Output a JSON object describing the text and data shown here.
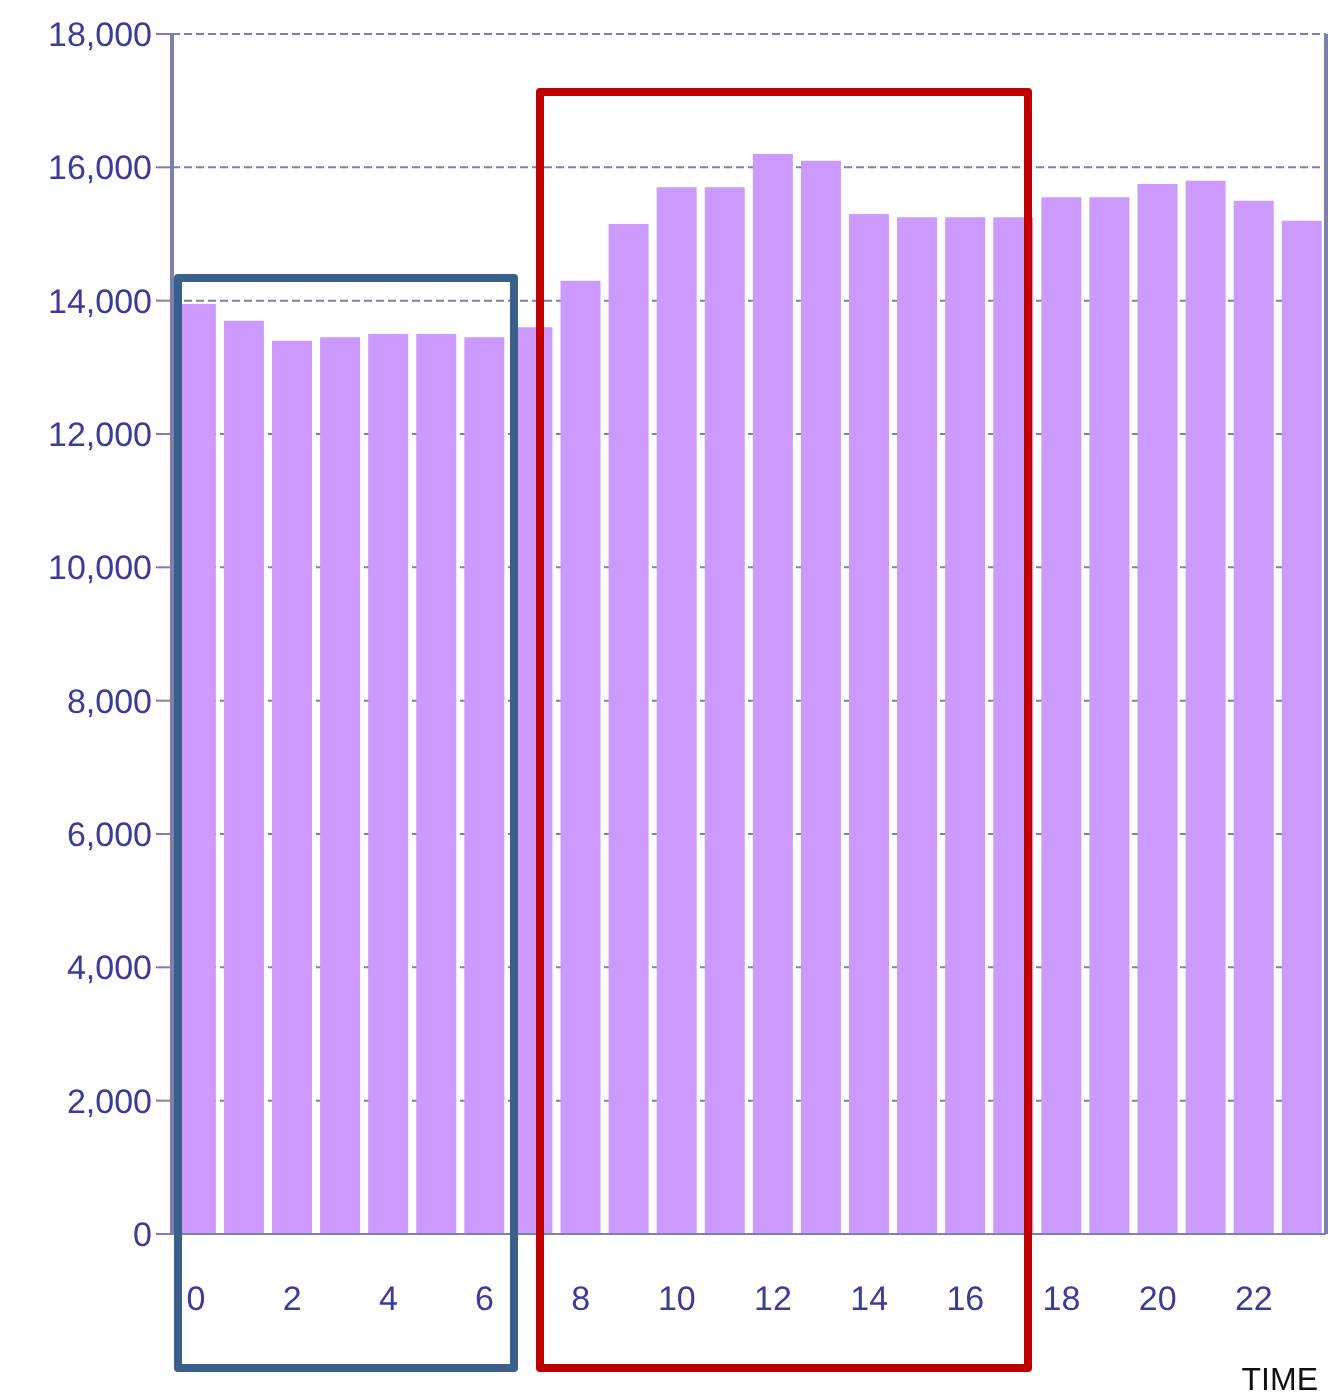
{
  "chart_data": {
    "type": "bar",
    "xlabel": "TIME",
    "categories": [
      "0",
      null,
      "2",
      null,
      "4",
      null,
      "6",
      null,
      "8",
      null,
      "10",
      null,
      "12",
      null,
      "14",
      null,
      "16",
      null,
      "18",
      null,
      "20",
      null,
      "22",
      null
    ],
    "values": [
      13950,
      13700,
      13400,
      13450,
      13500,
      13500,
      13450,
      13600,
      14300,
      15150,
      15700,
      15700,
      16200,
      16100,
      15300,
      15250,
      15250,
      15250,
      15550,
      15550,
      15750,
      15800,
      15500,
      15200
    ],
    "color": "#cc99ff",
    "ylim": [
      0,
      18000
    ],
    "yticks": [
      0,
      {
        "value": 2000,
        "label": "2,000"
      },
      {
        "value": 4000,
        "label": "4,000"
      },
      {
        "value": 6000,
        "label": "6,000"
      },
      {
        "value": 8000,
        "label": "8,000"
      },
      {
        "value": 10000,
        "label": "10,000"
      },
      {
        "value": 12000,
        "label": "12,000"
      },
      {
        "value": 14000,
        "label": "14,000"
      },
      {
        "value": 16000,
        "label": "16,000"
      },
      {
        "value": 18000,
        "label": "18,000"
      }
    ],
    "grid": "y",
    "legend": false
  }
}
